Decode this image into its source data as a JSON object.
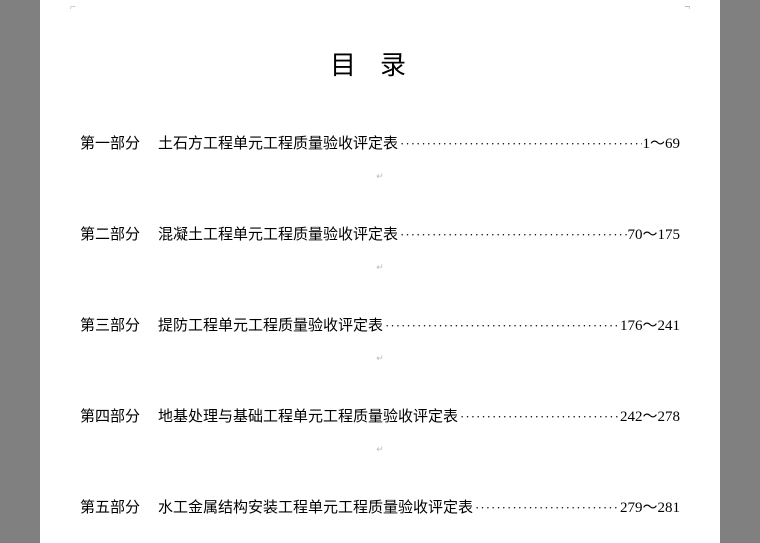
{
  "document": {
    "title": "目录",
    "title_fontsize": 26,
    "title_letterspacing": 24,
    "background_color": "#ffffff",
    "page_bg": "#808080",
    "text_color": "#000000",
    "font_family": "SimSun",
    "entry_fontsize": 15,
    "entries": [
      {
        "part": "第一部分",
        "title": "土石方工程单元工程质量验收评定表",
        "pages": "1～69"
      },
      {
        "part": "第二部分",
        "title": "混凝土工程单元工程质量验收评定表",
        "pages": "70～175"
      },
      {
        "part": "第三部分",
        "title": "提防工程单元工程质量验收评定表",
        "pages": "176～241"
      },
      {
        "part": "第四部分",
        "title": "地基处理与基础工程单元工程质量验收评定表",
        "pages": "242～278"
      },
      {
        "part": "第五部分",
        "title": "水工金属结构安装工程单元工程质量验收评定表",
        "pages": "279～281"
      }
    ]
  }
}
